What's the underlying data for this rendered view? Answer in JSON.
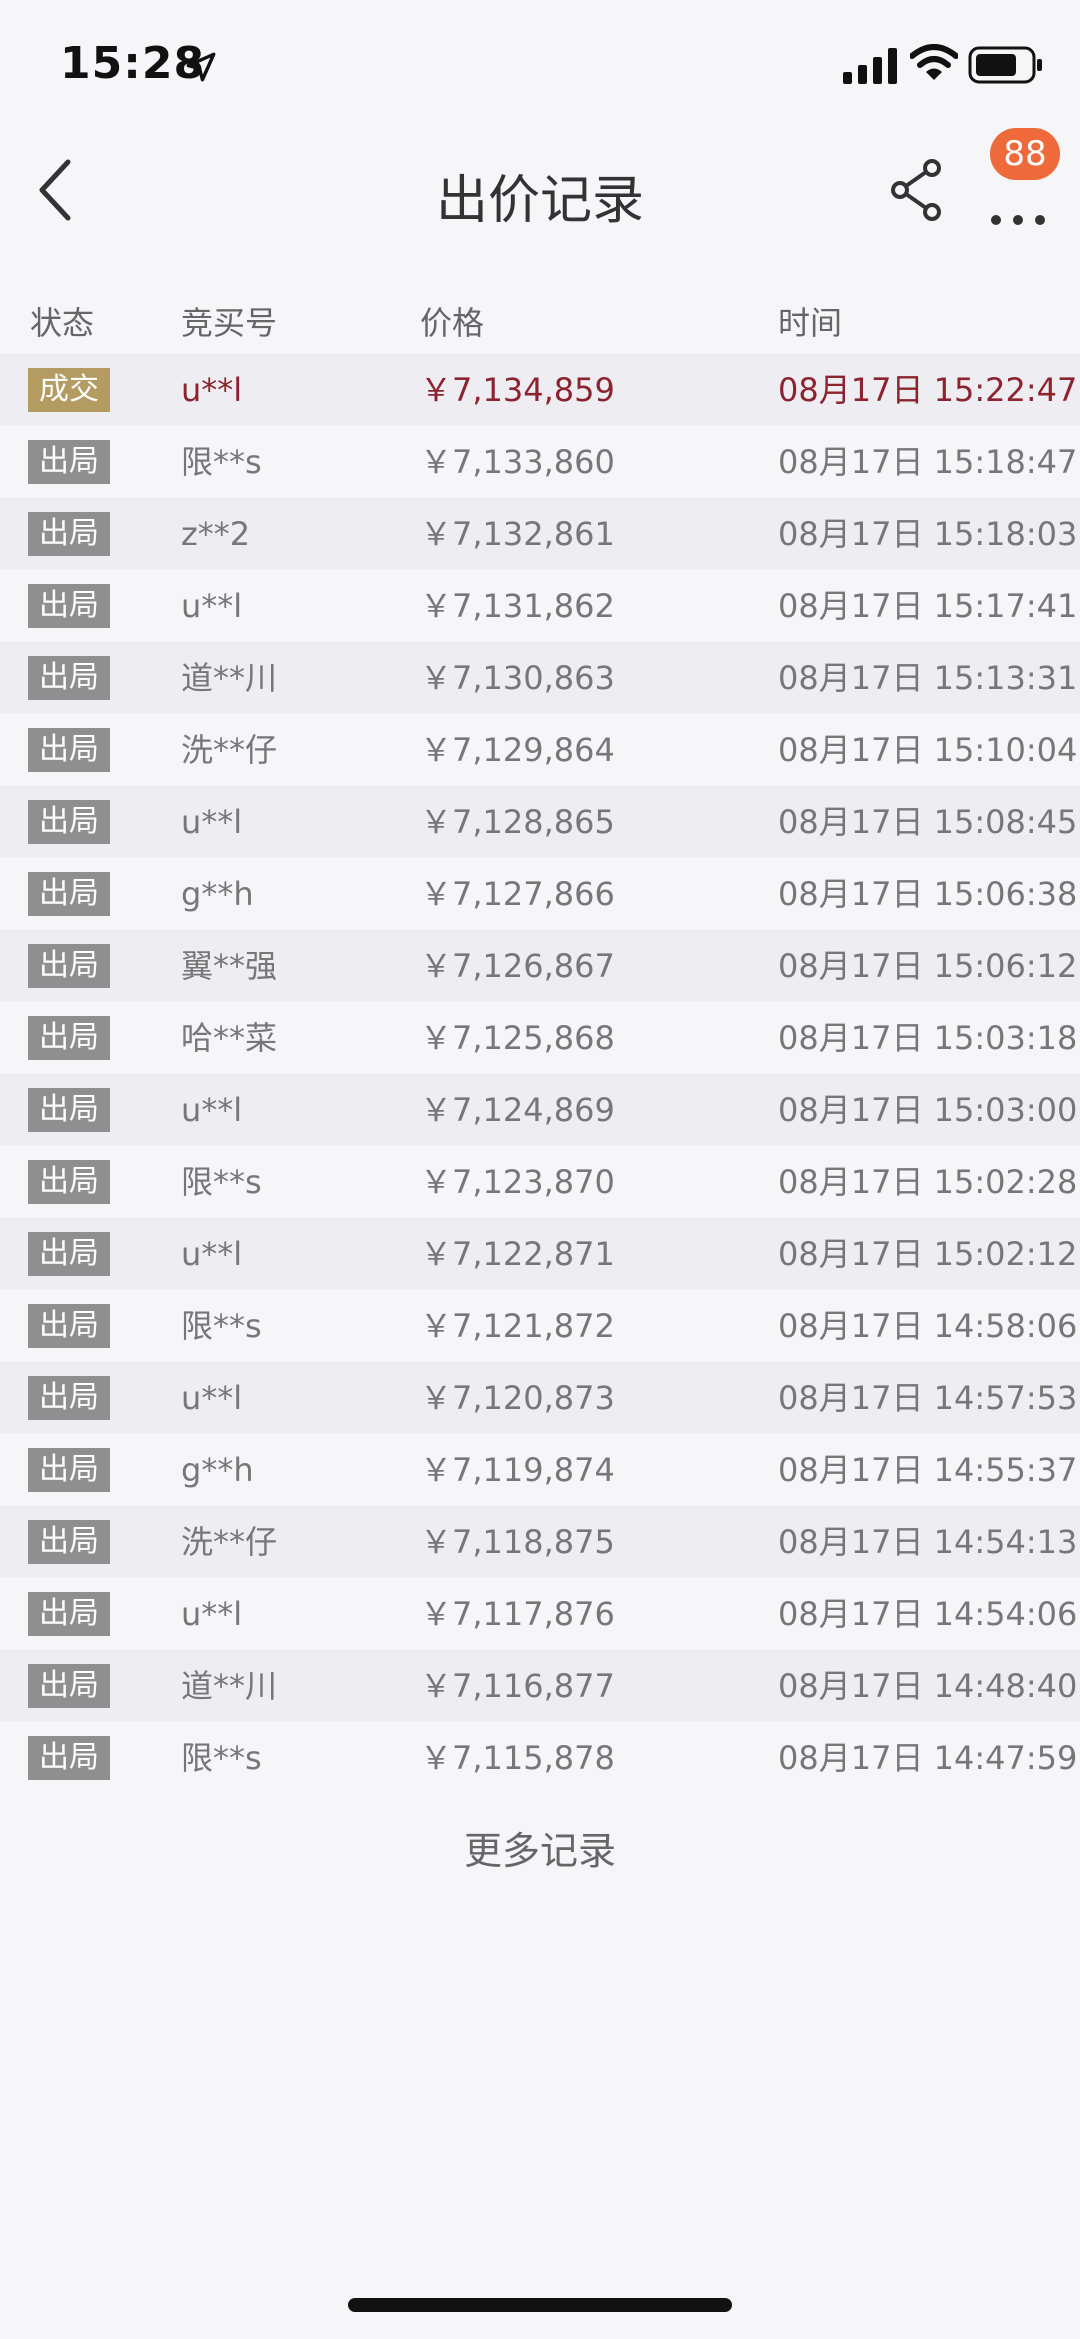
{
  "status_bar": {
    "time": "15:28"
  },
  "nav": {
    "title": "出价记录",
    "badge_count": "88"
  },
  "table": {
    "headers": {
      "status": "状态",
      "bidder": "竞买号",
      "price": "价格",
      "time": "时间"
    },
    "rows": [
      {
        "status": "成交",
        "bidder": "u**l",
        "price": "￥7,134,859",
        "time": "08月17日 15:22:47",
        "won": true
      },
      {
        "status": "出局",
        "bidder": "限**s",
        "price": "￥7,133,860",
        "time": "08月17日 15:18:47"
      },
      {
        "status": "出局",
        "bidder": "z**2",
        "price": "￥7,132,861",
        "time": "08月17日 15:18:03"
      },
      {
        "status": "出局",
        "bidder": "u**l",
        "price": "￥7,131,862",
        "time": "08月17日 15:17:41"
      },
      {
        "status": "出局",
        "bidder": "道**川",
        "price": "￥7,130,863",
        "time": "08月17日 15:13:31"
      },
      {
        "status": "出局",
        "bidder": "洗**仔",
        "price": "￥7,129,864",
        "time": "08月17日 15:10:04"
      },
      {
        "status": "出局",
        "bidder": "u**l",
        "price": "￥7,128,865",
        "time": "08月17日 15:08:45"
      },
      {
        "status": "出局",
        "bidder": "g**h",
        "price": "￥7,127,866",
        "time": "08月17日 15:06:38"
      },
      {
        "status": "出局",
        "bidder": "翼**强",
        "price": "￥7,126,867",
        "time": "08月17日 15:06:12"
      },
      {
        "status": "出局",
        "bidder": "哈**菜",
        "price": "￥7,125,868",
        "time": "08月17日 15:03:18"
      },
      {
        "status": "出局",
        "bidder": "u**l",
        "price": "￥7,124,869",
        "time": "08月17日 15:03:00"
      },
      {
        "status": "出局",
        "bidder": "限**s",
        "price": "￥7,123,870",
        "time": "08月17日 15:02:28"
      },
      {
        "status": "出局",
        "bidder": "u**l",
        "price": "￥7,122,871",
        "time": "08月17日 15:02:12"
      },
      {
        "status": "出局",
        "bidder": "限**s",
        "price": "￥7,121,872",
        "time": "08月17日 14:58:06"
      },
      {
        "status": "出局",
        "bidder": "u**l",
        "price": "￥7,120,873",
        "time": "08月17日 14:57:53"
      },
      {
        "status": "出局",
        "bidder": "g**h",
        "price": "￥7,119,874",
        "time": "08月17日 14:55:37"
      },
      {
        "status": "出局",
        "bidder": "洗**仔",
        "price": "￥7,118,875",
        "time": "08月17日 14:54:13"
      },
      {
        "status": "出局",
        "bidder": "u**l",
        "price": "￥7,117,876",
        "time": "08月17日 14:54:06"
      },
      {
        "status": "出局",
        "bidder": "道**川",
        "price": "￥7,116,877",
        "time": "08月17日 14:48:40"
      },
      {
        "status": "出局",
        "bidder": "限**s",
        "price": "￥7,115,878",
        "time": "08月17日 14:47:59"
      }
    ]
  },
  "footer": {
    "more_records": "更多记录"
  },
  "colors": {
    "won_badge": "#b39b62",
    "out_badge": "#8f8f8f",
    "won_text": "#8c2330",
    "notification_badge": "#ee6a3a"
  }
}
